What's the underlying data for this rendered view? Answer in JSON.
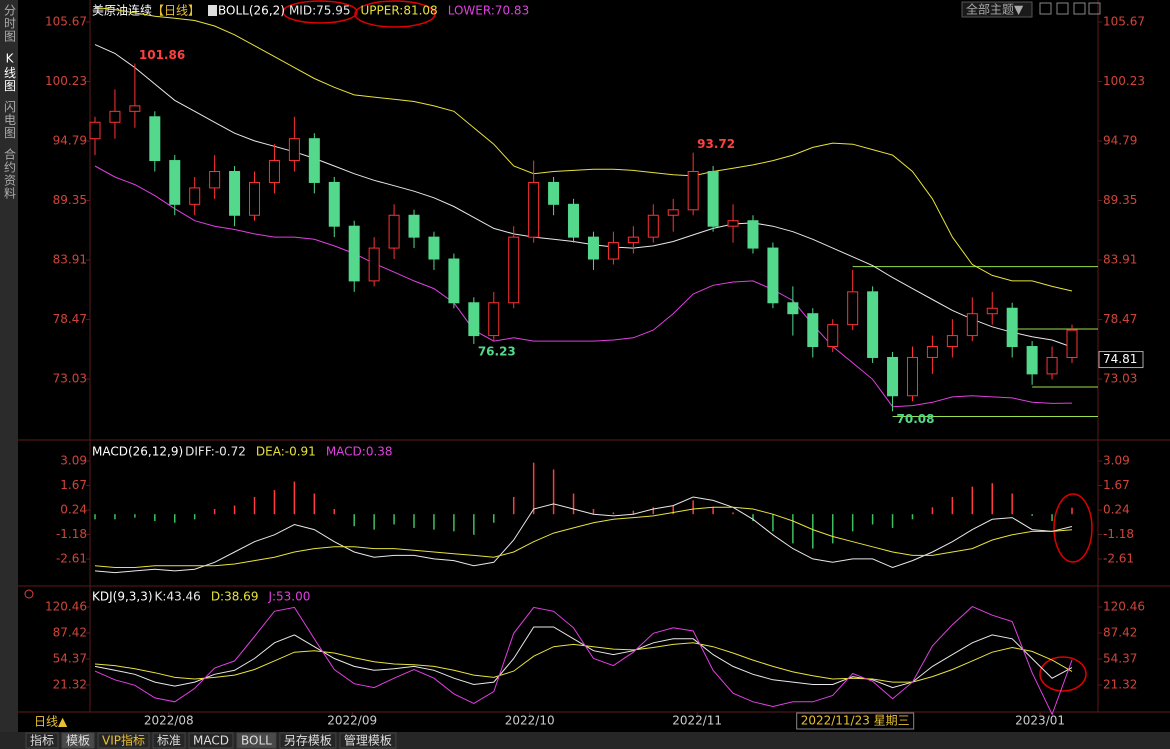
{
  "ui": {
    "sidebar": [
      "分时图",
      "K线图",
      "闪电图",
      "合约资料"
    ],
    "theme": "全部主题▼",
    "period_switch": "日线▲",
    "tabs": [
      "指标",
      "模板",
      "VIP指标",
      "标准",
      "MACD",
      "BOLL",
      "另存模板",
      "管理模板"
    ],
    "active_tabs": [
      1,
      5
    ]
  },
  "chart_data": [
    {
      "type": "candlestick",
      "title": "美原油连续",
      "period": "【日线】",
      "indicator": "BOLL(26,2)",
      "ylim": [
        67.73,
        107.22
      ],
      "yticks": [
        105.67,
        100.23,
        94.79,
        89.35,
        83.91,
        78.47,
        73.03
      ],
      "up_color": "#ff3232",
      "down_color": "#54d98c",
      "open": [
        95,
        96.5,
        97.5,
        97,
        93,
        89,
        90.5,
        92,
        88,
        91,
        93,
        95,
        91,
        87,
        82,
        85,
        88,
        86,
        84,
        80,
        77,
        80,
        86,
        91,
        89,
        86,
        84,
        85.5,
        86,
        88,
        88.5,
        92,
        87,
        87.5,
        85,
        80,
        79,
        76,
        78,
        81,
        75,
        71.5,
        75,
        76,
        77,
        79,
        79.5,
        76,
        73.5,
        75
      ],
      "high": [
        97,
        99.5,
        101.86,
        97.5,
        93.5,
        91.5,
        93.5,
        92.5,
        92,
        94.5,
        97,
        95.5,
        91.5,
        87.5,
        86,
        89,
        88.5,
        86.5,
        84.5,
        80.5,
        81,
        87,
        93,
        91.5,
        89.5,
        86.5,
        86.5,
        87,
        89,
        89.5,
        93.72,
        92.5,
        89,
        88,
        85.5,
        81.5,
        79.5,
        78.5,
        83,
        81.5,
        75.5,
        76,
        77,
        78.5,
        80.5,
        81,
        80,
        76.5,
        76,
        78
      ],
      "low": [
        93.5,
        95,
        96,
        92,
        88,
        88,
        89.5,
        87,
        87.5,
        90,
        92,
        90,
        86,
        81,
        81.5,
        84,
        85,
        83,
        79.5,
        76.23,
        76.5,
        79.5,
        85.5,
        88,
        85.5,
        83,
        83.5,
        84.5,
        85.5,
        86.5,
        88,
        86.5,
        85.5,
        84.5,
        79.5,
        77,
        75,
        75.5,
        77.5,
        74.5,
        70.08,
        71,
        73.5,
        75,
        76.5,
        78,
        75,
        72.5,
        73,
        74.5
      ],
      "close": [
        96.5,
        97.5,
        98,
        93,
        89,
        90.5,
        92,
        88,
        91,
        93,
        95,
        91,
        87,
        82,
        85,
        88,
        86,
        84,
        80,
        77,
        80,
        86,
        91,
        89,
        86,
        84,
        85.5,
        86,
        88,
        88.5,
        92,
        87,
        87.5,
        85,
        80,
        79,
        76,
        78,
        81,
        75,
        71.5,
        75,
        76,
        77,
        79,
        79.5,
        76,
        73.5,
        75,
        77.5
      ],
      "marked_highs": [
        2,
        30
      ],
      "marked_lows": [
        19,
        40
      ],
      "series": [
        {
          "name": "MID",
          "color": "#e8e8e8",
          "readout": {
            "value": 75.95,
            "label": "MID:75.95"
          },
          "values": [
            103.6,
            102.8,
            101.5,
            100,
            98.5,
            97.5,
            96.5,
            95.5,
            94.8,
            94.3,
            93.8,
            93.2,
            92.5,
            91.8,
            91.2,
            90.7,
            90.2,
            89.6,
            88.8,
            87.8,
            86.8,
            86.3,
            86,
            85.8,
            85.6,
            85.3,
            85.1,
            85,
            85.2,
            85.6,
            86.2,
            86.8,
            87.2,
            87.3,
            87,
            86.5,
            85.8,
            85,
            84.2,
            83.4,
            82.3,
            81.3,
            80.3,
            79.3,
            78.5,
            77.8,
            77.3,
            76.9,
            76.6,
            75.95
          ]
        },
        {
          "name": "UPPER",
          "color": "#e8e23a",
          "readout": {
            "value": 81.08,
            "label": "UPPER:81.08"
          },
          "values": [
            107,
            106.8,
            106.5,
            106.2,
            106,
            105.8,
            105.3,
            104.5,
            103.5,
            102.5,
            101.5,
            100.5,
            99.7,
            99,
            98.8,
            98.6,
            98.4,
            98,
            97.5,
            96,
            94.5,
            92.5,
            91.8,
            92,
            92.1,
            92.2,
            92.2,
            92.1,
            91.9,
            91.7,
            91.6,
            92,
            92.3,
            92.6,
            93,
            93.5,
            94.2,
            94.6,
            94.5,
            94,
            93.5,
            92,
            89.5,
            86,
            83.5,
            82.5,
            82,
            82,
            81.5,
            81.08
          ]
        },
        {
          "name": "LOWER",
          "color": "#e040e0",
          "readout": {
            "value": 70.83,
            "label": "LOWER:70.83"
          },
          "values": [
            92.5,
            91.5,
            90.8,
            89.8,
            88.6,
            87.5,
            87,
            86.7,
            86.3,
            86,
            86,
            85.8,
            85.2,
            84.5,
            83.6,
            82.8,
            82,
            81.3,
            80,
            77.5,
            76.5,
            76.8,
            76.5,
            76.5,
            76.5,
            76.5,
            76.6,
            76.8,
            77.5,
            79,
            80.8,
            81.6,
            81.9,
            82,
            81.2,
            80.2,
            78,
            76,
            74.5,
            73,
            70.5,
            70.6,
            70.9,
            71.4,
            71.5,
            71.4,
            71.3,
            70.9,
            70.8,
            70.83
          ]
        }
      ],
      "drawn_lines": [
        {
          "value": 83.3,
          "from": 38
        },
        {
          "value": 77.6,
          "from": 46
        },
        {
          "value": 72.3,
          "from": 47
        },
        {
          "value": 69.6,
          "from": 40
        }
      ],
      "cursor": {
        "price": 74.81,
        "date": "2022/11/23 星期三",
        "index": 37.7
      },
      "xticks": [
        {
          "value": 3.7,
          "label": "2022/08"
        },
        {
          "value": 12.9,
          "label": "2022/09"
        },
        {
          "value": 21.8,
          "label": "2022/10"
        },
        {
          "value": 30.2,
          "label": "2022/11"
        },
        {
          "value": 47.4,
          "label": "2023/01"
        }
      ]
    },
    {
      "type": "macd",
      "title": "MACD(26,12,9)",
      "ylim": [
        -4.12,
        4.14
      ],
      "yticks": [
        3.09,
        1.67,
        0.24,
        -1.18,
        -2.61
      ],
      "series": [
        {
          "name": "DIFF",
          "color": "#e8e8e8",
          "readout": {
            "value": -0.72,
            "label": "DIFF:-0.72"
          },
          "values": [
            -3.3,
            -3.4,
            -3.3,
            -3.2,
            -3.3,
            -3.2,
            -2.8,
            -2.2,
            -1.6,
            -1.2,
            -0.6,
            -0.9,
            -1.6,
            -2.2,
            -2.5,
            -2.4,
            -2.4,
            -2.6,
            -2.7,
            -3,
            -2.8,
            -1.5,
            0.3,
            0.6,
            0.3,
            0,
            -0.1,
            0,
            0.3,
            0.5,
            1,
            0.8,
            0.4,
            -0.3,
            -1.2,
            -2,
            -2.6,
            -2.8,
            -2.6,
            -2.6,
            -3.1,
            -2.7,
            -2.2,
            -1.6,
            -0.9,
            -0.3,
            -0.2,
            -0.9,
            -1,
            -0.72
          ]
        },
        {
          "name": "DEA",
          "color": "#e8e23a",
          "readout": {
            "value": -0.91,
            "label": "DEA:-0.91"
          },
          "values": [
            -3,
            -3.1,
            -3.1,
            -3,
            -3,
            -3,
            -3,
            -2.9,
            -2.7,
            -2.5,
            -2.2,
            -2,
            -1.9,
            -1.9,
            -2,
            -2,
            -2.1,
            -2.2,
            -2.3,
            -2.4,
            -2.5,
            -2.2,
            -1.6,
            -1.1,
            -0.8,
            -0.5,
            -0.3,
            -0.2,
            -0.1,
            0.1,
            0.3,
            0.4,
            0.4,
            0.3,
            0,
            -0.4,
            -0.9,
            -1.3,
            -1.6,
            -1.9,
            -2.2,
            -2.4,
            -2.4,
            -2.2,
            -2,
            -1.5,
            -1.2,
            -1,
            -1,
            -0.91
          ]
        },
        {
          "name": "MACD",
          "kind": "bar",
          "color": "#e040e0",
          "up_color": "#ff3c3c",
          "down_color": "#3fbf5f",
          "readout": {
            "value": 0.38,
            "label": "MACD:0.38"
          },
          "values": [
            -0.3,
            -0.3,
            -0.2,
            -0.4,
            -0.5,
            -0.3,
            0.3,
            0.5,
            1,
            1.4,
            1.9,
            1.2,
            0.3,
            -0.7,
            -0.9,
            -0.6,
            -0.8,
            -0.9,
            -1,
            -1.2,
            -0.5,
            1,
            3,
            2.6,
            1.2,
            0.3,
            0.1,
            0.2,
            0.4,
            0.5,
            0.8,
            0.4,
            0.1,
            -0.4,
            -1,
            -1.7,
            -2,
            -1.7,
            -1,
            -0.6,
            -0.8,
            -0.3,
            0.4,
            1,
            1.6,
            1.8,
            1.2,
            -0.1,
            -0.4,
            0.38
          ]
        }
      ]
    },
    {
      "type": "kdj",
      "title": "KDJ(9,3,3)",
      "ylim": [
        -10.4,
        144.6
      ],
      "yticks": [
        120.46,
        87.42,
        54.37,
        21.32
      ],
      "series": [
        {
          "name": "K",
          "color": "#e8e8e8",
          "readout": {
            "value": 43.46,
            "label": "K:43.46"
          },
          "values": [
            45,
            40,
            35,
            25,
            20,
            25,
            35,
            40,
            55,
            75,
            85,
            70,
            55,
            45,
            40,
            42,
            45,
            40,
            30,
            22,
            25,
            55,
            95,
            95,
            80,
            65,
            60,
            65,
            75,
            80,
            80,
            60,
            45,
            35,
            28,
            25,
            22,
            22,
            32,
            28,
            18,
            25,
            45,
            60,
            75,
            85,
            80,
            55,
            30,
            43.46
          ]
        },
        {
          "name": "D",
          "color": "#e8e23a",
          "readout": {
            "value": 38.69,
            "label": "D:38.69"
          },
          "values": [
            48,
            46,
            42,
            37,
            31,
            29,
            31,
            34,
            41,
            52,
            63,
            65,
            62,
            56,
            51,
            48,
            47,
            45,
            40,
            34,
            31,
            39,
            58,
            70,
            73,
            70,
            67,
            66,
            69,
            73,
            75,
            70,
            62,
            53,
            45,
            38,
            33,
            29,
            30,
            29,
            25,
            25,
            32,
            41,
            52,
            63,
            69,
            64,
            53,
            38.69
          ]
        },
        {
          "name": "J",
          "color": "#e040e0",
          "readout": {
            "value": 53.0,
            "label": "J:53.00"
          },
          "values": [
            39,
            28,
            21,
            5,
            0,
            17,
            43,
            52,
            83,
            115,
            120,
            80,
            41,
            23,
            18,
            30,
            41,
            30,
            10,
            -2,
            13,
            87,
            120,
            115,
            94,
            55,
            46,
            63,
            87,
            94,
            90,
            40,
            11,
            0,
            -6,
            0,
            0,
            8,
            36,
            26,
            4,
            25,
            71,
            98,
            121,
            110,
            102,
            37,
            -16,
            53
          ]
        }
      ]
    }
  ]
}
